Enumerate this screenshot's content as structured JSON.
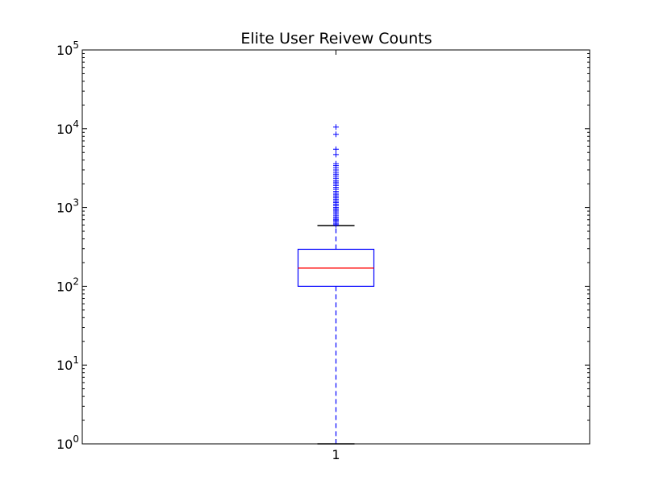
{
  "chart_data": {
    "type": "box",
    "title": "Elite User Reivew Counts",
    "xlabel": "",
    "ylabel": "",
    "yscale": "log",
    "ylim": [
      1,
      100000
    ],
    "categories": [
      "1"
    ],
    "yticks": [
      {
        "value": 1,
        "base": "10",
        "exp": "0"
      },
      {
        "value": 10,
        "base": "10",
        "exp": "1"
      },
      {
        "value": 100,
        "base": "10",
        "exp": "2"
      },
      {
        "value": 1000,
        "base": "10",
        "exp": "3"
      },
      {
        "value": 10000,
        "base": "10",
        "exp": "4"
      },
      {
        "value": 100000,
        "base": "10",
        "exp": "5"
      }
    ],
    "boxes": [
      {
        "category": "1",
        "whisker_low": 1,
        "q1": 100,
        "median": 170,
        "q3": 295,
        "whisker_high": 590,
        "fliers": [
          600,
          620,
          650,
          680,
          700,
          730,
          760,
          800,
          840,
          880,
          920,
          960,
          1000,
          1050,
          1100,
          1150,
          1200,
          1260,
          1320,
          1380,
          1450,
          1520,
          1600,
          1700,
          1800,
          1900,
          2000,
          2100,
          2200,
          2350,
          2500,
          2650,
          2800,
          3000,
          3200,
          3400,
          3600,
          4700,
          5500,
          8500,
          10500
        ]
      }
    ],
    "colors": {
      "box": "#0000ff",
      "median": "#ff0000",
      "whisker": "#0000ff",
      "cap": "#000000",
      "flier": "#0000ff",
      "axes": "#000000"
    },
    "grid": false,
    "legend": "none"
  }
}
